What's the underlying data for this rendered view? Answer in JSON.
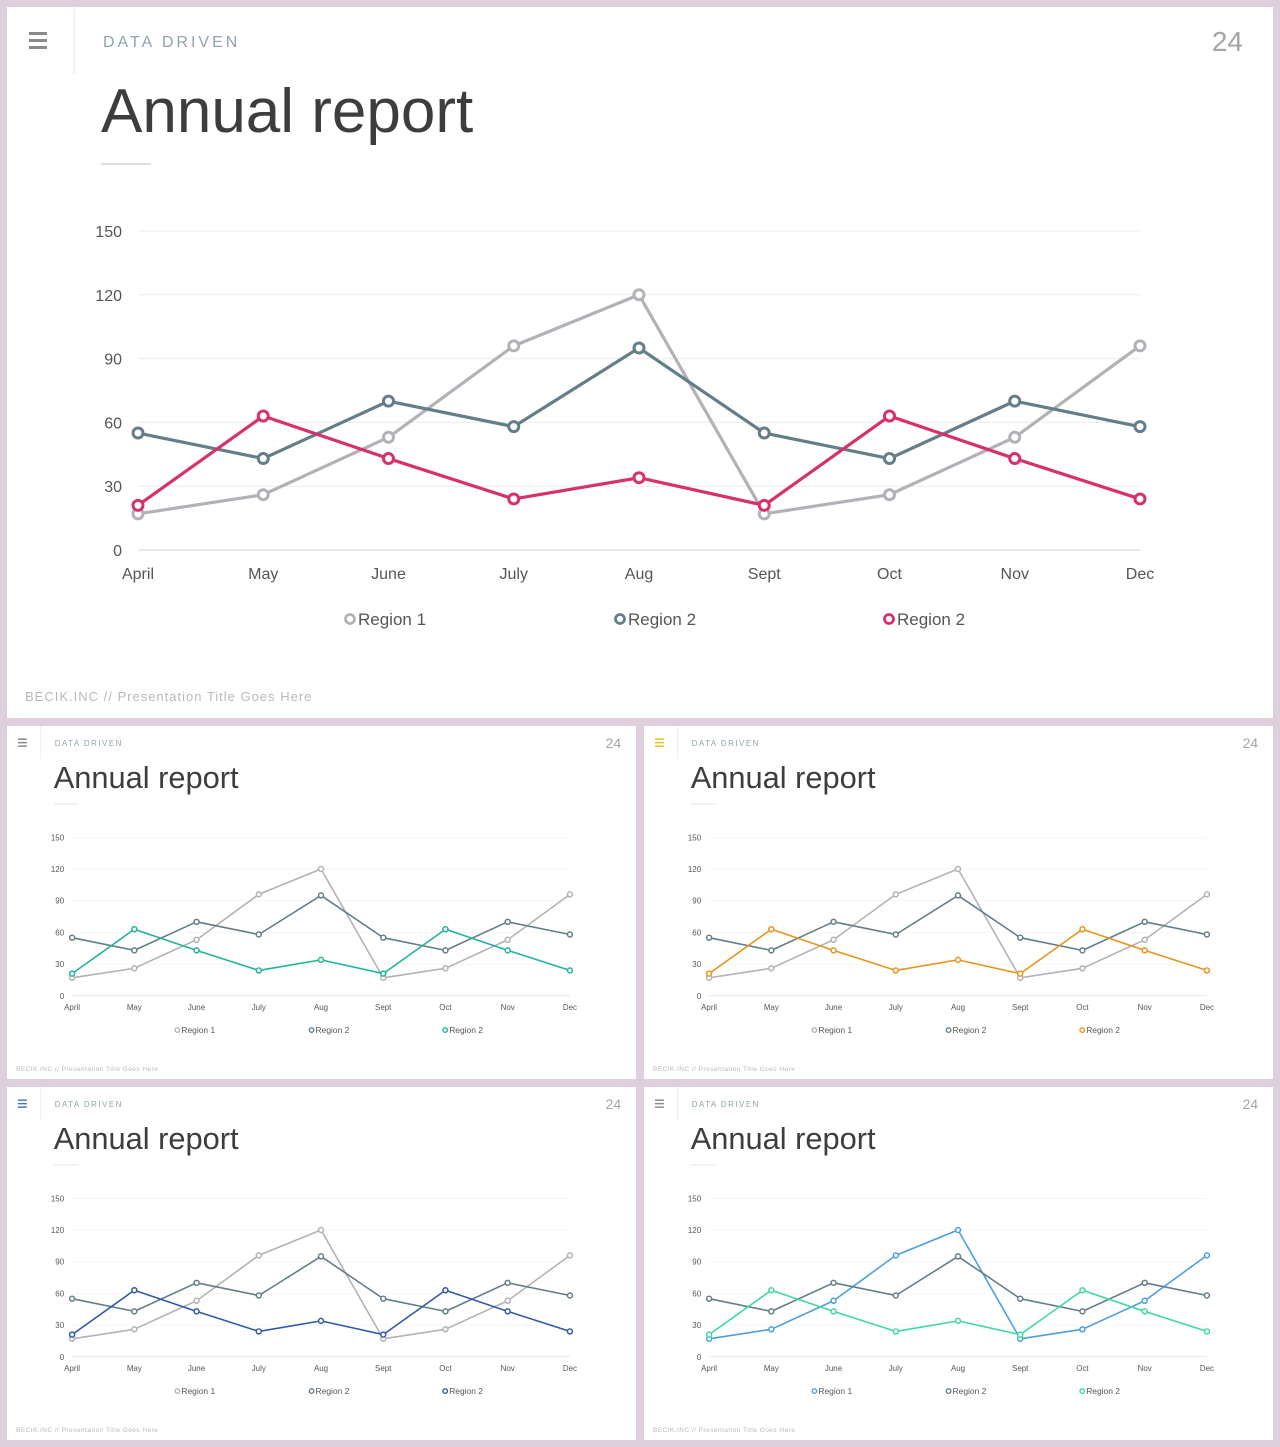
{
  "header": {
    "section_label": "DATA DRIVEN",
    "page_number": "24",
    "title": "Annual report",
    "footer": "BECIK.INC  //  Presentation  Title  Goes  Here"
  },
  "icons": {
    "menu": "menu-icon",
    "legend_marker": "legend-circle-icon"
  },
  "chart_data": [
    {
      "type": "line",
      "categories": [
        "April",
        "May",
        "June",
        "July",
        "Aug",
        "Sept",
        "Oct",
        "Nov",
        "Dec"
      ],
      "ylim": [
        0,
        150
      ],
      "yticks": [
        0,
        30,
        60,
        90,
        120,
        150
      ],
      "grid": true,
      "legend_position": "bottom",
      "series": [
        {
          "name": "Region 1",
          "color": "#b3b1b7",
          "values": [
            17,
            26,
            53,
            96,
            120,
            17,
            26,
            53,
            96
          ]
        },
        {
          "name": "Region 2",
          "color": "#637d89",
          "values": [
            55,
            43,
            70,
            58,
            95,
            55,
            43,
            70,
            58
          ]
        },
        {
          "name": "Region 2",
          "color": "#d6306d",
          "values": [
            21,
            63,
            43,
            24,
            34,
            21,
            63,
            43,
            24
          ]
        }
      ]
    },
    {
      "type": "line",
      "categories": [
        "April",
        "May",
        "June",
        "July",
        "Aug",
        "Sept",
        "Oct",
        "Nov",
        "Dec"
      ],
      "ylim": [
        0,
        150
      ],
      "yticks": [
        0,
        30,
        60,
        90,
        120,
        150
      ],
      "grid": true,
      "legend_position": "bottom",
      "series": [
        {
          "name": "Region 1",
          "color": "#b3b1b7",
          "values": [
            17,
            26,
            53,
            96,
            120,
            17,
            26,
            53,
            96
          ]
        },
        {
          "name": "Region 2",
          "color": "#637d89",
          "values": [
            55,
            43,
            70,
            58,
            95,
            55,
            43,
            70,
            58
          ]
        },
        {
          "name": "Region 2",
          "color": "#1fb39a",
          "values": [
            21,
            63,
            43,
            24,
            34,
            21,
            63,
            43,
            24
          ]
        }
      ]
    },
    {
      "type": "line",
      "categories": [
        "April",
        "May",
        "June",
        "July",
        "Aug",
        "Sept",
        "Oct",
        "Nov",
        "Dec"
      ],
      "ylim": [
        0,
        150
      ],
      "yticks": [
        0,
        30,
        60,
        90,
        120,
        150
      ],
      "grid": true,
      "legend_position": "bottom",
      "series": [
        {
          "name": "Region 1",
          "color": "#b3b1b7",
          "values": [
            17,
            26,
            53,
            96,
            120,
            17,
            26,
            53,
            96
          ]
        },
        {
          "name": "Region 2",
          "color": "#637d89",
          "values": [
            55,
            43,
            70,
            58,
            95,
            55,
            43,
            70,
            58
          ]
        },
        {
          "name": "Region 2",
          "color": "#e8941a",
          "values": [
            21,
            63,
            43,
            24,
            34,
            21,
            63,
            43,
            24
          ]
        }
      ]
    },
    {
      "type": "line",
      "categories": [
        "April",
        "May",
        "June",
        "July",
        "Aug",
        "Sept",
        "Oct",
        "Nov",
        "Dec"
      ],
      "ylim": [
        0,
        150
      ],
      "yticks": [
        0,
        30,
        60,
        90,
        120,
        150
      ],
      "grid": true,
      "legend_position": "bottom",
      "series": [
        {
          "name": "Region 1",
          "color": "#b3b1b7",
          "values": [
            17,
            26,
            53,
            96,
            120,
            17,
            26,
            53,
            96
          ]
        },
        {
          "name": "Region 2",
          "color": "#637d89",
          "values": [
            55,
            43,
            70,
            58,
            95,
            55,
            43,
            70,
            58
          ]
        },
        {
          "name": "Region 2",
          "color": "#2f5aa8",
          "values": [
            21,
            63,
            43,
            24,
            34,
            21,
            63,
            43,
            24
          ]
        }
      ]
    },
    {
      "type": "line",
      "categories": [
        "April",
        "May",
        "June",
        "July",
        "Aug",
        "Sept",
        "Oct",
        "Nov",
        "Dec"
      ],
      "ylim": [
        0,
        150
      ],
      "yticks": [
        0,
        30,
        60,
        90,
        120,
        150
      ],
      "grid": true,
      "legend_position": "bottom",
      "series": [
        {
          "name": "Region 1",
          "color": "#4b9fdc",
          "values": [
            17,
            26,
            53,
            96,
            120,
            17,
            26,
            53,
            96
          ]
        },
        {
          "name": "Region 2",
          "color": "#637d89",
          "values": [
            55,
            43,
            70,
            58,
            95,
            55,
            43,
            70,
            58
          ]
        },
        {
          "name": "Region 2",
          "color": "#3fd8a0",
          "values": [
            21,
            63,
            43,
            24,
            34,
            21,
            63,
            43,
            24
          ]
        }
      ]
    }
  ],
  "menu_colors": [
    "#8a8a8a",
    "#8a8a8a",
    "#e8c21a",
    "#4a78c0",
    "#8a8a8a"
  ]
}
